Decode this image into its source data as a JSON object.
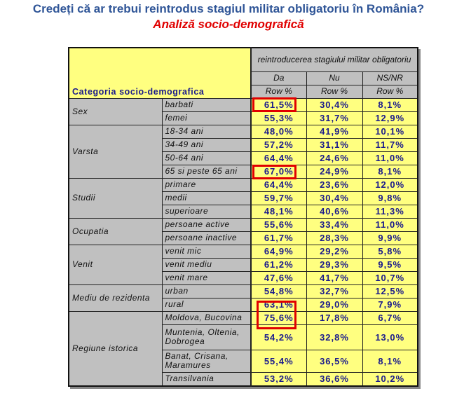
{
  "title": "Credeți că ar trebui reintrodus stagiul militar obligatoriu în România?",
  "subtitle": "Analiză socio-demografică",
  "table": {
    "corner": "Categoria socio-demografica",
    "group_header": "reintroducerea stagiului militar obligatoriu",
    "columns": [
      "Da",
      "Nu",
      "NS/NR"
    ],
    "measure": [
      "Row %",
      "Row %",
      "Row %"
    ],
    "groups": [
      {
        "name": "Sex",
        "rows": [
          {
            "label": "barbati",
            "v": [
              "61,5%",
              "30,4%",
              "8,1%"
            ]
          },
          {
            "label": "femei",
            "v": [
              "55,3%",
              "31,7%",
              "12,9%"
            ]
          }
        ]
      },
      {
        "name": "Varsta",
        "rows": [
          {
            "label": "18-34 ani",
            "v": [
              "48,0%",
              "41,9%",
              "10,1%"
            ]
          },
          {
            "label": "34-49 ani",
            "v": [
              "57,2%",
              "31,1%",
              "11,7%"
            ]
          },
          {
            "label": "50-64 ani",
            "v": [
              "64,4%",
              "24,6%",
              "11,0%"
            ]
          },
          {
            "label": "65 si peste 65 ani",
            "v": [
              "67,0%",
              "24,9%",
              "8,1%"
            ]
          }
        ]
      },
      {
        "name": "Studii",
        "rows": [
          {
            "label": "primare",
            "v": [
              "64,4%",
              "23,6%",
              "12,0%"
            ]
          },
          {
            "label": "medii",
            "v": [
              "59,7%",
              "30,4%",
              "9,8%"
            ]
          },
          {
            "label": "superioare",
            "v": [
              "48,1%",
              "40,6%",
              "11,3%"
            ]
          }
        ]
      },
      {
        "name": "Ocupatia",
        "rows": [
          {
            "label": "persoane active",
            "v": [
              "55,6%",
              "33,4%",
              "11,0%"
            ]
          },
          {
            "label": "persoane inactive",
            "v": [
              "61,7%",
              "28,3%",
              "9,9%"
            ]
          }
        ]
      },
      {
        "name": "Venit",
        "rows": [
          {
            "label": "venit mic",
            "v": [
              "64,9%",
              "29,2%",
              "5,8%"
            ]
          },
          {
            "label": "venit mediu",
            "v": [
              "61,2%",
              "29,3%",
              "9,5%"
            ]
          },
          {
            "label": "venit mare",
            "v": [
              "47,6%",
              "41,7%",
              "10,7%"
            ]
          }
        ]
      },
      {
        "name": "Mediu de rezidenta",
        "rows": [
          {
            "label": "urban",
            "v": [
              "54,8%",
              "32,7%",
              "12,5%"
            ]
          },
          {
            "label": "rural",
            "v": [
              "63,1%",
              "29,0%",
              "7,9%"
            ]
          }
        ]
      },
      {
        "name": "Regiune istorica",
        "rows": [
          {
            "label": "Moldova, Bucovina",
            "v": [
              "75,6%",
              "17,8%",
              "6,7%"
            ]
          },
          {
            "label": "Muntenia, Oltenia, Dobrogea",
            "v": [
              "54,2%",
              "32,8%",
              "13,0%"
            ]
          },
          {
            "label": "Banat, Crisana, Maramures",
            "v": [
              "55,4%",
              "36,5%",
              "8,1%"
            ]
          },
          {
            "label": "Transilvania",
            "v": [
              "53,2%",
              "36,6%",
              "10,2%"
            ]
          }
        ]
      }
    ]
  }
}
